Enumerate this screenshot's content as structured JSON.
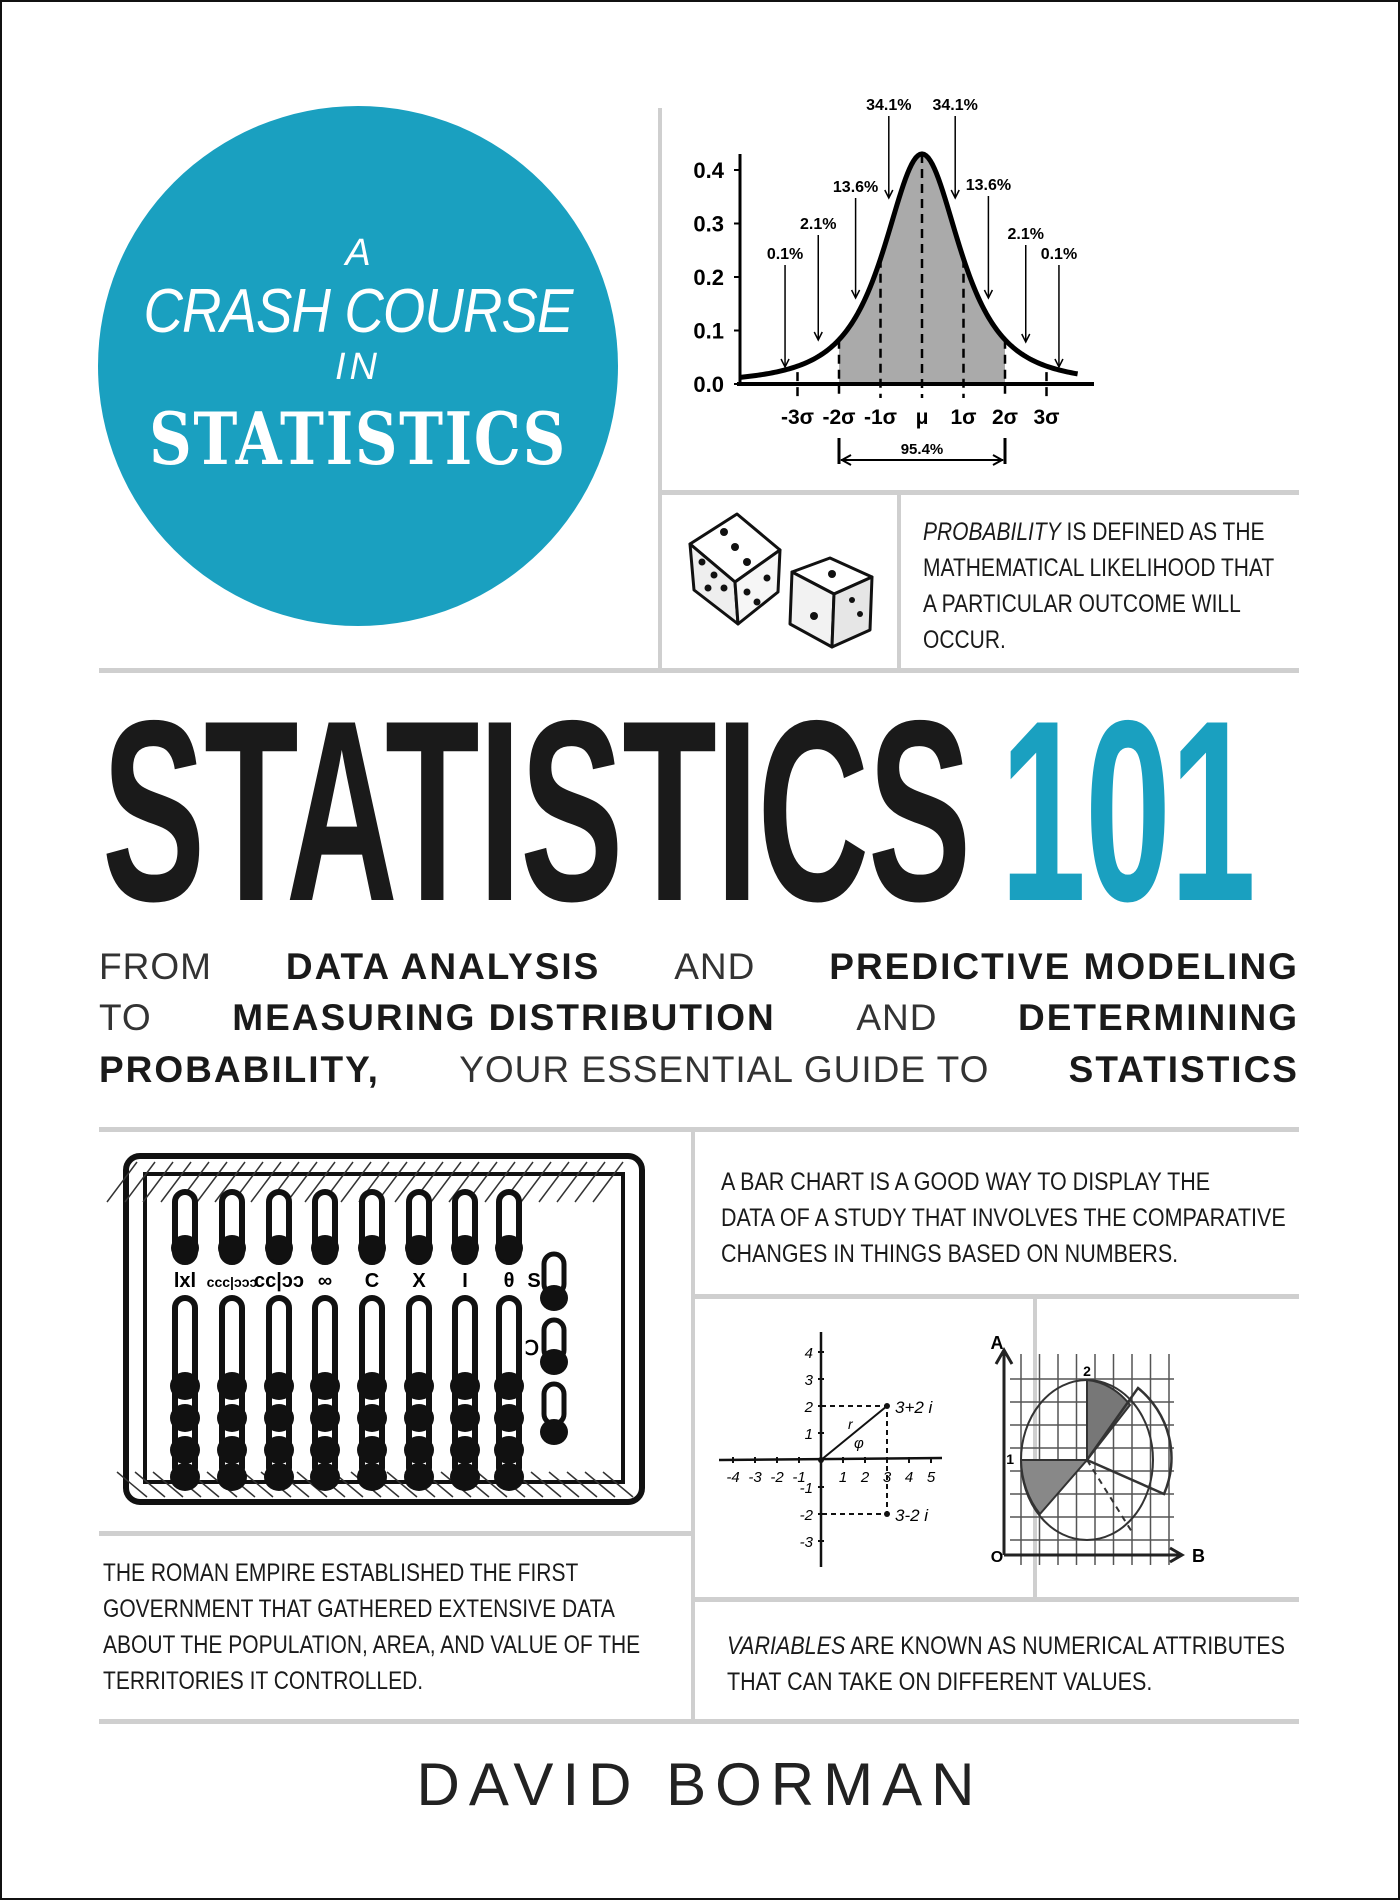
{
  "badge": {
    "line1": "A",
    "line2": "CRASH COURSE",
    "line3": "IN",
    "line4": "STATISTICS"
  },
  "title": {
    "main": "STATISTICS",
    "number": "101"
  },
  "subtitle": [
    [
      {
        "t": "FROM",
        "b": false
      },
      {
        "t": "DATA ANALYSIS",
        "b": true
      },
      {
        "t": "AND",
        "b": false
      },
      {
        "t": "PREDICTIVE MODELING",
        "b": true
      }
    ],
    [
      {
        "t": "TO",
        "b": false
      },
      {
        "t": "MEASURING DISTRIBUTION",
        "b": true
      },
      {
        "t": "AND",
        "b": false
      },
      {
        "t": "DETERMINING",
        "b": true
      }
    ],
    [
      {
        "t": "PROBABILITY,",
        "b": true
      },
      {
        "t": "YOUR ESSENTIAL GUIDE TO",
        "b": false
      },
      {
        "t": "STATISTICS",
        "b": true
      }
    ]
  ],
  "facts": {
    "probability": {
      "emph": "PROBABILITY",
      "lines": [
        "IS DEFINED AS THE",
        "MATHEMATICAL LIKELIHOOD THAT",
        "A PARTICULAR OUTCOME WILL",
        "OCCUR."
      ]
    },
    "bar_chart": {
      "lines": [
        "A BAR CHART IS A GOOD WAY TO DISPLAY THE",
        "DATA OF A STUDY THAT INVOLVES THE COMPARATIVE",
        "CHANGES IN THINGS BASED ON NUMBERS."
      ]
    },
    "roman": {
      "lines": [
        "THE ROMAN EMPIRE ESTABLISHED THE FIRST",
        "GOVERNMENT THAT GATHERED EXTENSIVE DATA",
        "ABOUT THE POPULATION, AREA, AND VALUE OF THE",
        "TERRITORIES IT CONTROLLED."
      ]
    },
    "variables": {
      "emph": "VARIABLES",
      "lines": [
        "ARE KNOWN AS NUMERICAL ATTRIBUTES",
        "THAT CAN TAKE ON DIFFERENT VALUES."
      ]
    }
  },
  "author": "DAVID BORMAN",
  "colors": {
    "accent": "#1aa0c0",
    "divider": "#cfcfcf",
    "text": "#1a1a1a"
  },
  "bell_curve": {
    "y_ticks": [
      "0.0",
      "0.1",
      "0.2",
      "0.3",
      "0.4"
    ],
    "x_ticks": [
      "-3σ",
      "-2σ",
      "-1σ",
      "μ",
      "1σ",
      "2σ",
      "3σ"
    ],
    "areas": [
      "0.1%",
      "2.1%",
      "13.6%",
      "34.1%",
      "34.1%",
      "13.6%",
      "2.1%",
      "0.1%"
    ],
    "range_label": "95.4%",
    "shaded_range": [
      "-2σ",
      "2σ"
    ]
  },
  "complex_plane": {
    "x_ticks": [
      "-4",
      "-3",
      "-2",
      "-1",
      "1",
      "2",
      "3",
      "4",
      "5"
    ],
    "y_ticks": [
      "4",
      "3",
      "2",
      "1",
      "-1",
      "-2",
      "-3"
    ],
    "point1": "3+2 i",
    "point2": "3-2 i",
    "radius_label": "r",
    "angle_label": "φ"
  },
  "pie_sketch": {
    "axis_y": "A",
    "axis_x": "B",
    "origin": "O",
    "mark1": "1",
    "mark2": "2"
  },
  "abacus": {
    "labels": [
      "lxl",
      "ccc|ↄↄↄ",
      "cc|ↄↄ",
      "∞",
      "C",
      "X",
      "I",
      "θ",
      "S",
      "Ↄ"
    ]
  },
  "illustrations": [
    "normal-distribution-chart",
    "dice",
    "abacus",
    "complex-plane-sketch",
    "pie-grid-sketch"
  ]
}
